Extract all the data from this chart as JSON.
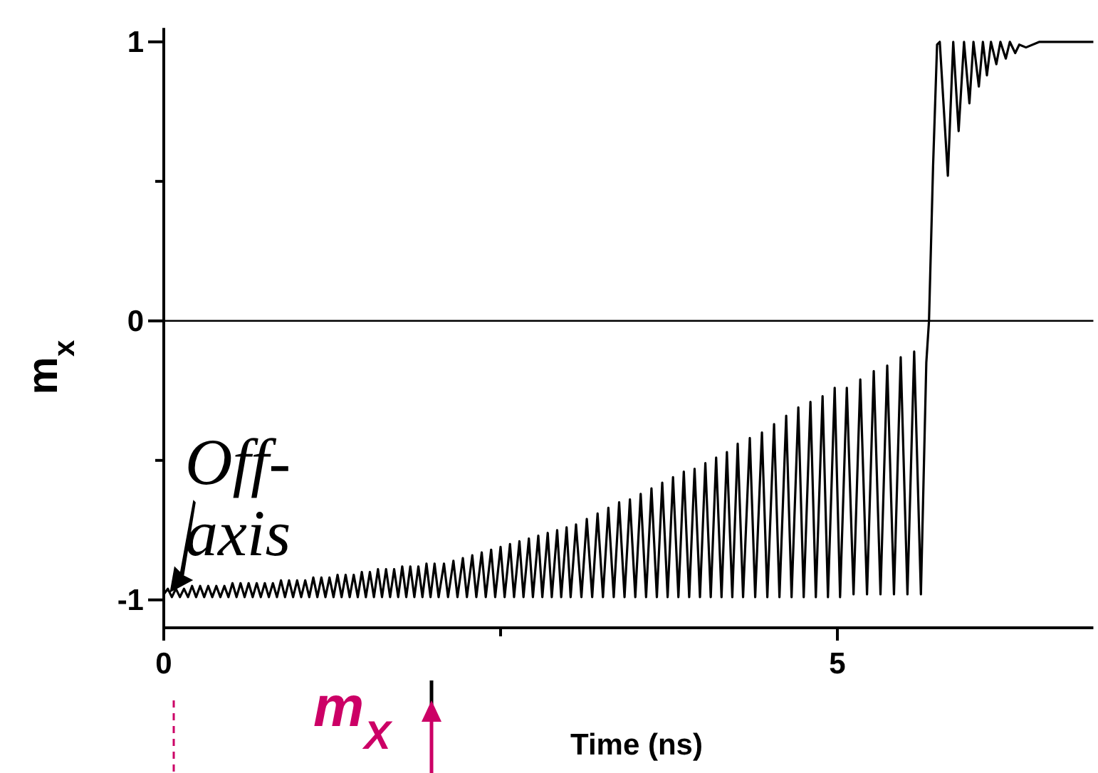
{
  "chart_data": {
    "type": "line",
    "xlabel": "Time (ns)",
    "ylabel": "m$_{x}$",
    "xlim": [
      0,
      6.9
    ],
    "xticks": [
      0,
      {
        "value": 2.5,
        "label": null
      },
      5
    ],
    "ylim": [
      -1.1,
      1.05
    ],
    "yticks": [
      -1,
      {
        "value": -0.5,
        "label": null
      },
      0,
      {
        "value": 0.5,
        "label": null
      },
      1
    ],
    "grid": false,
    "marker": "none",
    "line_style": "solid",
    "ref_lines": [
      {
        "axis": "y",
        "value": 0,
        "color": "#000000"
      }
    ],
    "annotations": [
      {
        "text": "Off-\naxis",
        "x": 0.05,
        "y": -0.97
      },
      "m$_{X}$"
    ],
    "series": [
      {
        "color": "#000000",
        "x": [
          0,
          0.03,
          0.06,
          0.09,
          0.12,
          0.15,
          0.18,
          0.21,
          0.24,
          0.27,
          0.3,
          0.33,
          0.36,
          0.39,
          0.42,
          0.45,
          0.48,
          0.51,
          0.54,
          0.57,
          0.6,
          0.63,
          0.66,
          0.69,
          0.72,
          0.75,
          0.78,
          0.81,
          0.84,
          0.87,
          0.9,
          0.93,
          0.96,
          0.99,
          1.02,
          1.05,
          1.08,
          1.11,
          1.14,
          1.17,
          1.2,
          1.23,
          1.26,
          1.29,
          1.32,
          1.35,
          1.38,
          1.41,
          1.44,
          1.47,
          1.5,
          1.53,
          1.56,
          1.59,
          1.62,
          1.65,
          1.68,
          1.71,
          1.74,
          1.77,
          1.8,
          1.83,
          1.86,
          1.89,
          1.92,
          1.95,
          1.98,
          2.01,
          2.04,
          2.08,
          2.11,
          2.15,
          2.18,
          2.22,
          2.25,
          2.29,
          2.32,
          2.36,
          2.39,
          2.43,
          2.46,
          2.5,
          2.53,
          2.57,
          2.6,
          2.64,
          2.67,
          2.71,
          2.74,
          2.78,
          2.81,
          2.85,
          2.88,
          2.92,
          2.95,
          2.99,
          3.02,
          3.06,
          3.1,
          3.14,
          3.18,
          3.22,
          3.26,
          3.3,
          3.34,
          3.38,
          3.42,
          3.46,
          3.5,
          3.54,
          3.58,
          3.62,
          3.66,
          3.7,
          3.74,
          3.78,
          3.82,
          3.86,
          3.9,
          3.94,
          3.98,
          4.02,
          4.06,
          4.1,
          4.14,
          4.18,
          4.22,
          4.26,
          4.3,
          4.35,
          4.39,
          4.44,
          4.48,
          4.53,
          4.57,
          4.62,
          4.66,
          4.71,
          4.75,
          4.8,
          4.84,
          4.89,
          4.93,
          4.98,
          5.02,
          5.07,
          5.12,
          5.17,
          5.22,
          5.27,
          5.32,
          5.37,
          5.42,
          5.47,
          5.52,
          5.57,
          5.62,
          5.66,
          5.68,
          5.71,
          5.74,
          5.76,
          5.82,
          5.86,
          5.9,
          5.94,
          5.98,
          6.01,
          6.05,
          6.08,
          6.11,
          6.14,
          6.18,
          6.21,
          6.25,
          6.28,
          6.32,
          6.35,
          6.4,
          6.5,
          6.9
        ],
        "values": [
          -0.98,
          -0.96,
          -0.99,
          -0.96,
          -0.99,
          -0.96,
          -0.99,
          -0.95,
          -0.99,
          -0.95,
          -0.99,
          -0.95,
          -0.99,
          -0.95,
          -0.99,
          -0.95,
          -0.99,
          -0.94,
          -0.99,
          -0.94,
          -0.99,
          -0.94,
          -0.99,
          -0.94,
          -0.99,
          -0.94,
          -0.99,
          -0.94,
          -0.99,
          -0.93,
          -0.99,
          -0.93,
          -0.99,
          -0.93,
          -0.99,
          -0.93,
          -0.99,
          -0.92,
          -0.99,
          -0.92,
          -0.99,
          -0.92,
          -0.99,
          -0.91,
          -0.99,
          -0.91,
          -0.99,
          -0.91,
          -0.99,
          -0.9,
          -0.99,
          -0.9,
          -0.99,
          -0.89,
          -0.99,
          -0.89,
          -0.99,
          -0.89,
          -0.99,
          -0.88,
          -0.99,
          -0.88,
          -0.99,
          -0.88,
          -0.99,
          -0.87,
          -0.99,
          -0.87,
          -0.99,
          -0.87,
          -0.99,
          -0.86,
          -0.99,
          -0.85,
          -0.99,
          -0.84,
          -0.99,
          -0.83,
          -0.99,
          -0.82,
          -0.99,
          -0.81,
          -0.99,
          -0.8,
          -0.99,
          -0.79,
          -0.99,
          -0.78,
          -0.99,
          -0.77,
          -0.99,
          -0.76,
          -0.99,
          -0.75,
          -0.99,
          -0.74,
          -0.99,
          -0.73,
          -0.99,
          -0.71,
          -0.99,
          -0.69,
          -0.99,
          -0.67,
          -0.99,
          -0.65,
          -0.99,
          -0.64,
          -0.99,
          -0.62,
          -0.99,
          -0.6,
          -0.99,
          -0.58,
          -0.99,
          -0.56,
          -0.99,
          -0.54,
          -0.99,
          -0.53,
          -0.99,
          -0.51,
          -0.99,
          -0.49,
          -0.99,
          -0.47,
          -0.99,
          -0.44,
          -0.99,
          -0.42,
          -0.99,
          -0.4,
          -0.99,
          -0.37,
          -0.99,
          -0.34,
          -0.99,
          -0.31,
          -0.99,
          -0.29,
          -0.99,
          -0.27,
          -0.99,
          -0.24,
          -0.99,
          -0.24,
          -0.98,
          -0.21,
          -0.98,
          -0.18,
          -0.98,
          -0.16,
          -0.98,
          -0.13,
          -0.98,
          -0.11,
          -0.98,
          -0.15,
          0,
          0.55,
          0.99,
          1.0,
          0.52,
          1.0,
          0.68,
          1.0,
          0.78,
          1.0,
          0.84,
          1.0,
          0.88,
          1.0,
          0.92,
          1.0,
          0.94,
          1.0,
          0.96,
          0.99,
          0.98,
          1.0,
          1.0
        ]
      }
    ]
  }
}
